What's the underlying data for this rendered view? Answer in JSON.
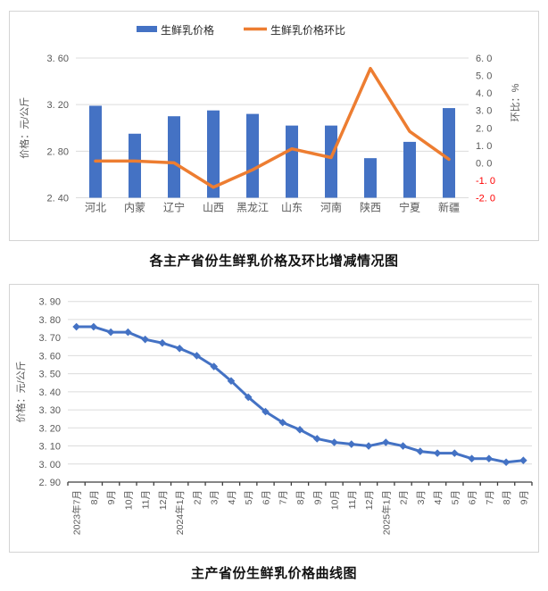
{
  "titles": {
    "chart1_caption": "各主产省份生鲜乳价格及环比增减情况图",
    "chart2_caption": "主产省份生鲜乳价格曲线图"
  },
  "colors": {
    "bar_blue": "#4472C4",
    "line_orange": "#ED7D31",
    "line_blue": "#4472C4",
    "axis_text": "#595959",
    "negative_tick_red": "#FF0000",
    "gridline": "#DCDCDC",
    "dark_axis": "#3f3f3f",
    "legend_text": "#262626"
  },
  "chart_data": [
    {
      "type": "bar",
      "subtype": "combo-bar-line-dual-axis",
      "caption": "各主产省份生鲜乳价格及环比增减情况图",
      "legend": [
        {
          "label": "生鲜乳价格",
          "marker": "bar",
          "color": "#4472C4"
        },
        {
          "label": "生鲜乳价格环比",
          "marker": "line",
          "color": "#ED7D31"
        }
      ],
      "categories": [
        "河北",
        "内蒙",
        "辽宁",
        "山西",
        "黑龙江",
        "山东",
        "河南",
        "陕西",
        "宁夏",
        "新疆"
      ],
      "series": [
        {
          "name": "生鲜乳价格",
          "type": "bar",
          "axis": "left",
          "values": [
            3.19,
            2.95,
            3.1,
            3.15,
            3.12,
            3.02,
            3.02,
            2.74,
            2.88,
            3.17
          ]
        },
        {
          "name": "生鲜乳价格环比",
          "type": "line",
          "axis": "right",
          "values": [
            0.1,
            0.1,
            0.0,
            -1.4,
            -0.4,
            0.8,
            0.3,
            5.4,
            1.8,
            0.2
          ]
        }
      ],
      "left_axis": {
        "title": "价格：元/公斤",
        "min": 2.4,
        "max": 3.6,
        "step": 0.4,
        "grid": true
      },
      "right_axis": {
        "title": "环比：%",
        "min": -2.0,
        "max": 6.0,
        "step": 1.0,
        "grid": false
      }
    },
    {
      "type": "line",
      "caption": "主产省份生鲜乳价格曲线图",
      "series_name": "生鲜乳价格",
      "x": [
        "2023年7月",
        "8月",
        "9月",
        "10月",
        "11月",
        "12月",
        "2024年1月",
        "2月",
        "3月",
        "4月",
        "5月",
        "6月",
        "7月",
        "8月",
        "9月",
        "10月",
        "11月",
        "12月",
        "2025年1月",
        "2月",
        "3月",
        "4月",
        "5月",
        "6月",
        "7月",
        "8月",
        "9月"
      ],
      "values": [
        3.76,
        3.76,
        3.73,
        3.73,
        3.69,
        3.67,
        3.64,
        3.6,
        3.54,
        3.46,
        3.37,
        3.29,
        3.23,
        3.19,
        3.14,
        3.12,
        3.11,
        3.1,
        3.12,
        3.1,
        3.07,
        3.06,
        3.06,
        3.03,
        3.03,
        3.01,
        3.02
      ],
      "y_axis": {
        "title": "价格：元/公斤",
        "min": 2.9,
        "max": 3.9,
        "step": 0.1,
        "grid": true
      },
      "marker": "diamond",
      "legend_position": "none"
    }
  ]
}
